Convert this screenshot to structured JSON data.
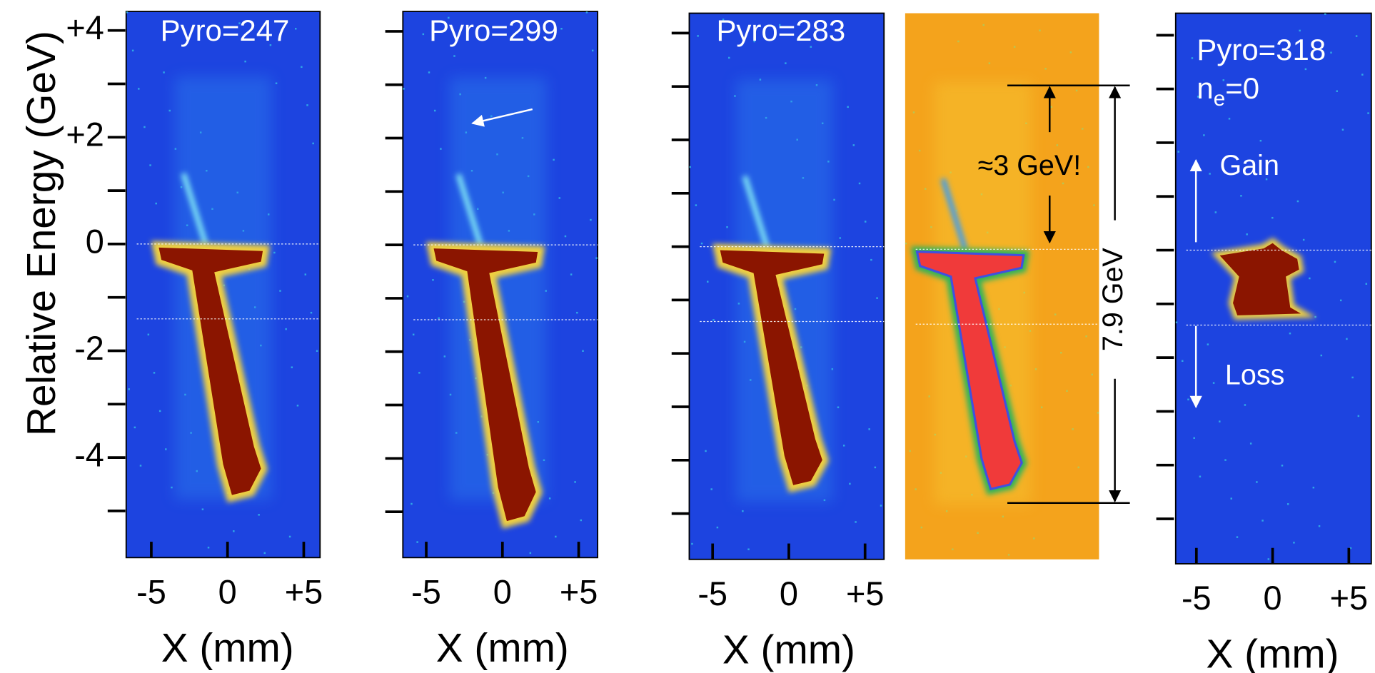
{
  "y_axis": {
    "label": "Relative Energy (GeV)",
    "ticks": [
      {
        "value": 4,
        "label": "+4"
      },
      {
        "value": 2,
        "label": "+2"
      },
      0,
      -2,
      -4
    ]
  },
  "x_axis": {
    "label": "X (mm)",
    "ticks": [
      -5,
      0,
      {
        "value": 5,
        "label": "+5"
      }
    ]
  },
  "panels": [
    {
      "label": "Pyro=247"
    },
    {
      "label": "Pyro=299"
    },
    {
      "label": "Pyro=283"
    },
    {
      "label": "Pyro=318",
      "density": {
        "symbol": "n",
        "subscript": "e",
        "text": "=0"
      }
    }
  ],
  "annotations": {
    "energy_gain": "≈3 GeV!",
    "energy_span": "7.9 GeV",
    "gain": "Gain",
    "loss": "Loss"
  }
}
